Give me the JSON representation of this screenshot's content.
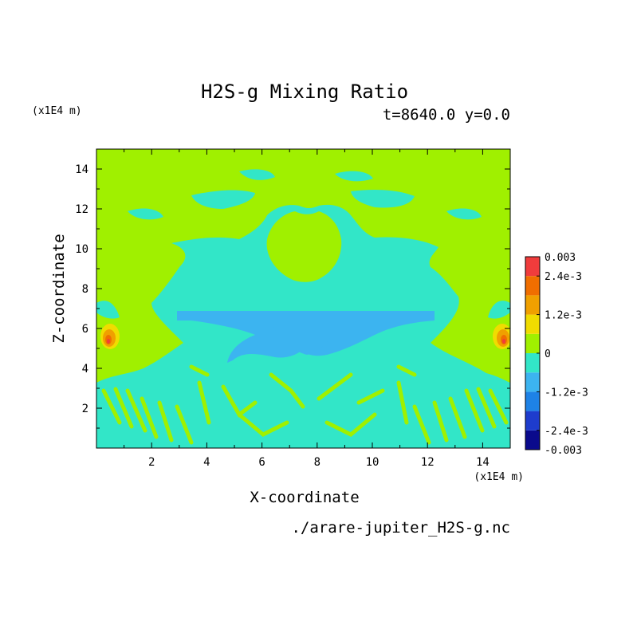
{
  "chart_data": {
    "type": "heatmap",
    "title": "H2S-g Mixing Ratio",
    "subtitle": "t=8640.0 y=0.0",
    "xlabel": "X-coordinate",
    "ylabel": "Z-coordinate",
    "x_unit": "(x1E4 m)",
    "y_unit": "(x1E4 m)",
    "footer": "./arare-jupiter_H2S-g.nc",
    "xlim": [
      0,
      15
    ],
    "ylim": [
      0,
      15
    ],
    "x_ticks": [
      2,
      4,
      6,
      8,
      10,
      12,
      14
    ],
    "y_ticks": [
      2,
      4,
      6,
      8,
      10,
      12,
      14
    ],
    "colorbar": {
      "levels": [
        -0.003,
        -0.0024,
        -0.0018,
        -0.0012,
        -0.0006,
        0,
        0.0006,
        0.0012,
        0.0018,
        0.0024,
        0.003
      ],
      "colors": [
        "#0a0a8c",
        "#1e3ccd",
        "#1e82e6",
        "#3cb4f0",
        "#32e6c8",
        "#a0f000",
        "#f0dc00",
        "#f0a000",
        "#f06e00",
        "#f03c3c"
      ],
      "tick_labels": [
        "0.003",
        "2.4e-3",
        "1.2e-3",
        "0",
        "-1.2e-3",
        "-2.4e-3",
        "-0.003"
      ]
    },
    "field_description": {
      "background_value": 0.0003,
      "regions": [
        {
          "value": -0.0003,
          "note": "mid band z≈2–9"
        },
        {
          "value": -0.0009,
          "note": "core z≈4–6.4 near x≈7.5"
        },
        {
          "value": 0.002,
          "note": "edge maxima x≈0.5 and x≈14.5, z≈5"
        }
      ]
    }
  }
}
